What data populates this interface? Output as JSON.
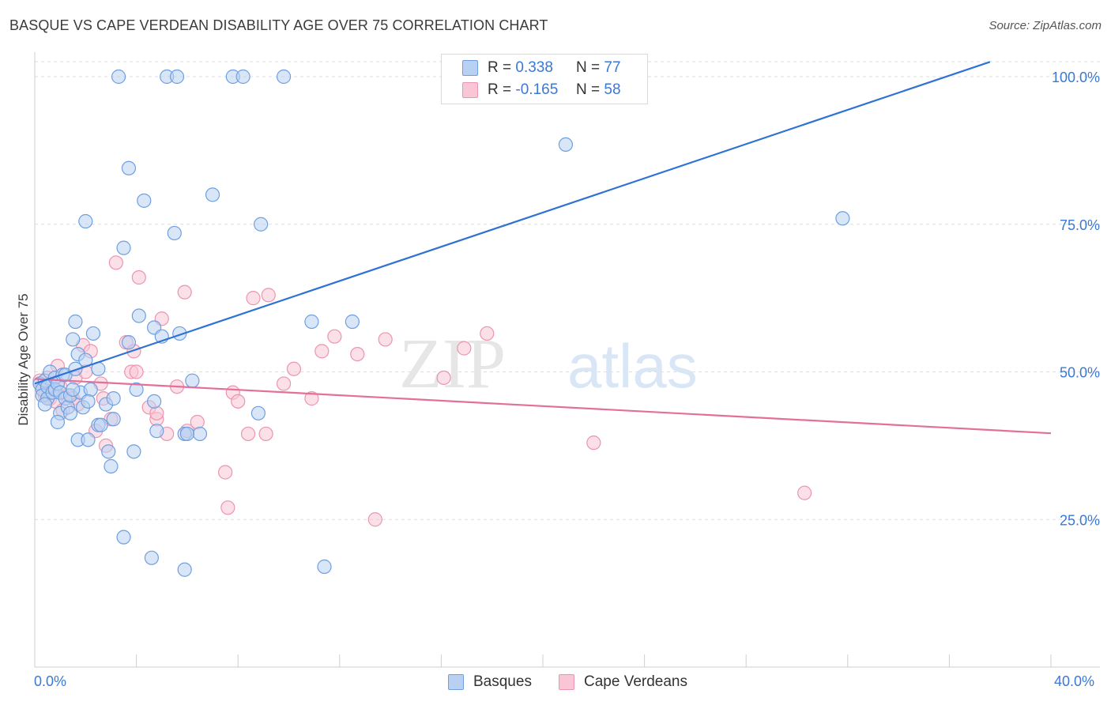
{
  "header": {
    "title": "BASQUE VS CAPE VERDEAN DISABILITY AGE OVER 75 CORRELATION CHART",
    "source": "Source: ZipAtlas.com"
  },
  "legend": {
    "items": [
      {
        "r_label": "R =",
        "r_value": "0.338",
        "n_label": "N =",
        "n_value": "77"
      },
      {
        "r_label": "R =",
        "r_value": "-0.165",
        "n_label": "N =",
        "n_value": "58"
      }
    ]
  },
  "watermark": {
    "zip": "ZIP",
    "atlas": "atlas"
  },
  "colors": {
    "basque_fill": "#b8d1f3",
    "basque_stroke": "#6f9fe0",
    "basque_line": "#2f72d4",
    "cape_fill": "#f8c6d5",
    "cape_stroke": "#ec94b0",
    "cape_line": "#e2709a",
    "tick_label": "#3a78d6",
    "grid": "#dddddd"
  },
  "chart_data": {
    "type": "scatter",
    "title": "BASQUE VS CAPE VERDEAN DISABILITY AGE OVER 75 CORRELATION CHART",
    "xlabel": "",
    "ylabel": "Disability Age Over 75",
    "xlim": [
      0,
      40
    ],
    "ylim": [
      0,
      105
    ],
    "x_tick_labels": [
      "0.0%",
      "40.0%"
    ],
    "y_ticks": [
      25,
      50,
      75,
      100
    ],
    "y_tick_labels": [
      "25.0%",
      "50.0%",
      "75.0%",
      "100.0%"
    ],
    "grid": true,
    "series": [
      {
        "name": "Basques",
        "r": 0.338,
        "n": 77,
        "trend": {
          "x": [
            0,
            37.6
          ],
          "y": [
            48.0,
            102.5
          ]
        },
        "points": [
          [
            0.2,
            48.0
          ],
          [
            0.3,
            47.0
          ],
          [
            0.3,
            46.0
          ],
          [
            0.4,
            48.5
          ],
          [
            0.5,
            45.5
          ],
          [
            0.5,
            47.5
          ],
          [
            0.6,
            50.0
          ],
          [
            0.7,
            46.5
          ],
          [
            0.8,
            49.0
          ],
          [
            0.8,
            47.0
          ],
          [
            0.9,
            48.0
          ],
          [
            1.0,
            46.5
          ],
          [
            1.0,
            43.0
          ],
          [
            1.1,
            49.5
          ],
          [
            1.2,
            45.5
          ],
          [
            1.2,
            49.5
          ],
          [
            1.3,
            44.0
          ],
          [
            1.4,
            46.0
          ],
          [
            1.4,
            43.0
          ],
          [
            1.5,
            55.5
          ],
          [
            1.6,
            50.5
          ],
          [
            1.6,
            58.5
          ],
          [
            1.7,
            53.0
          ],
          [
            1.7,
            38.5
          ],
          [
            1.8,
            46.5
          ],
          [
            1.9,
            44.0
          ],
          [
            2.0,
            52.0
          ],
          [
            2.0,
            75.5
          ],
          [
            2.1,
            38.5
          ],
          [
            2.2,
            47.0
          ],
          [
            2.3,
            56.5
          ],
          [
            2.5,
            50.5
          ],
          [
            2.5,
            41.0
          ],
          [
            2.6,
            41.0
          ],
          [
            2.8,
            44.5
          ],
          [
            2.9,
            36.5
          ],
          [
            3.0,
            34.0
          ],
          [
            3.1,
            42.0
          ],
          [
            3.3,
            100.0
          ],
          [
            3.5,
            22.0
          ],
          [
            3.5,
            71.0
          ],
          [
            3.7,
            84.5
          ],
          [
            3.9,
            36.5
          ],
          [
            4.0,
            47.0
          ],
          [
            4.3,
            79.0
          ],
          [
            4.6,
            18.5
          ],
          [
            4.7,
            57.5
          ],
          [
            4.7,
            45.0
          ],
          [
            4.8,
            40.0
          ],
          [
            5.0,
            56.0
          ],
          [
            5.2,
            100.0
          ],
          [
            5.5,
            73.5
          ],
          [
            5.6,
            100.0
          ],
          [
            5.7,
            56.5
          ],
          [
            5.9,
            16.5
          ],
          [
            5.9,
            39.5
          ],
          [
            6.2,
            48.5
          ],
          [
            6.5,
            39.5
          ],
          [
            7.0,
            80.0
          ],
          [
            7.8,
            100.0
          ],
          [
            8.2,
            100.0
          ],
          [
            8.8,
            43.0
          ],
          [
            8.9,
            75.0
          ],
          [
            9.8,
            100.0
          ],
          [
            10.9,
            58.5
          ],
          [
            11.4,
            17.0
          ],
          [
            12.5,
            58.5
          ],
          [
            20.9,
            88.5
          ],
          [
            31.8,
            76.0
          ],
          [
            0.4,
            44.5
          ],
          [
            3.1,
            45.5
          ],
          [
            4.1,
            59.5
          ],
          [
            2.1,
            45.0
          ],
          [
            0.9,
            41.5
          ],
          [
            1.5,
            47.0
          ],
          [
            6.0,
            39.5
          ],
          [
            3.7,
            55.0
          ]
        ]
      },
      {
        "name": "Cape Verdeans",
        "r": -0.165,
        "n": 58,
        "trend": {
          "x": [
            0,
            40
          ],
          "y": [
            48.8,
            39.6
          ]
        },
        "points": [
          [
            0.2,
            48.5
          ],
          [
            0.3,
            47.0
          ],
          [
            0.4,
            46.0
          ],
          [
            0.5,
            49.0
          ],
          [
            0.6,
            45.5
          ],
          [
            0.7,
            46.5
          ],
          [
            0.8,
            45.0
          ],
          [
            0.9,
            51.0
          ],
          [
            1.0,
            47.5
          ],
          [
            1.1,
            43.5
          ],
          [
            1.3,
            46.0
          ],
          [
            1.5,
            45.5
          ],
          [
            1.6,
            49.0
          ],
          [
            1.7,
            44.5
          ],
          [
            1.9,
            54.5
          ],
          [
            2.0,
            50.0
          ],
          [
            2.2,
            53.5
          ],
          [
            2.4,
            40.0
          ],
          [
            2.6,
            48.0
          ],
          [
            2.7,
            45.5
          ],
          [
            3.0,
            42.0
          ],
          [
            3.2,
            68.5
          ],
          [
            3.6,
            55.0
          ],
          [
            3.8,
            50.0
          ],
          [
            3.9,
            53.5
          ],
          [
            4.0,
            50.0
          ],
          [
            4.1,
            66.0
          ],
          [
            4.5,
            44.0
          ],
          [
            4.8,
            42.0
          ],
          [
            5.0,
            59.0
          ],
          [
            5.2,
            39.5
          ],
          [
            5.6,
            47.5
          ],
          [
            5.9,
            63.5
          ],
          [
            6.0,
            40.0
          ],
          [
            6.4,
            41.5
          ],
          [
            7.5,
            33.0
          ],
          [
            7.6,
            27.0
          ],
          [
            7.8,
            46.5
          ],
          [
            8.0,
            45.0
          ],
          [
            8.4,
            39.5
          ],
          [
            8.6,
            62.5
          ],
          [
            9.1,
            39.5
          ],
          [
            9.2,
            63.0
          ],
          [
            9.8,
            48.0
          ],
          [
            10.2,
            50.5
          ],
          [
            10.9,
            45.5
          ],
          [
            11.3,
            53.5
          ],
          [
            11.8,
            56.0
          ],
          [
            12.7,
            53.0
          ],
          [
            13.4,
            25.0
          ],
          [
            13.8,
            55.5
          ],
          [
            16.1,
            49.0
          ],
          [
            16.9,
            54.0
          ],
          [
            17.8,
            56.5
          ],
          [
            22.0,
            38.0
          ],
          [
            30.3,
            29.5
          ],
          [
            4.8,
            43.0
          ],
          [
            2.8,
            37.5
          ]
        ]
      }
    ]
  },
  "bottom_legend": {
    "items": [
      "Basques",
      "Cape Verdeans"
    ]
  }
}
